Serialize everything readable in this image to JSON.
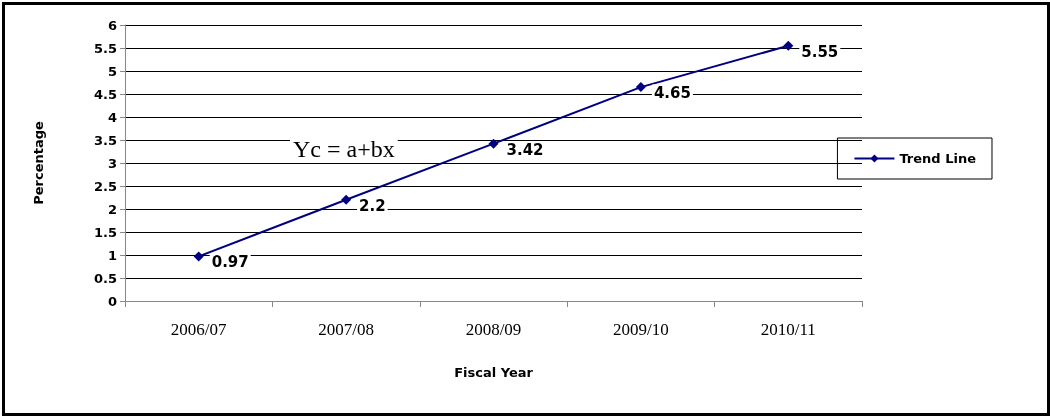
{
  "chart_data": {
    "type": "line",
    "xlabel": "Fiscal Year",
    "ylabel": "Percentage",
    "categories": [
      "2006/07",
      "2007/08",
      "2008/09",
      "2009/10",
      "2010/11"
    ],
    "series": [
      {
        "name": "Trend Line",
        "color": "#000080",
        "values": [
          0.97,
          2.2,
          3.42,
          4.65,
          5.55
        ]
      }
    ],
    "ylim": [
      0,
      6
    ],
    "yticks": [
      0,
      0.5,
      1,
      1.5,
      2,
      2.5,
      3,
      3.5,
      4,
      4.5,
      5,
      5.5,
      6
    ],
    "grid": "y",
    "legend": "right",
    "marker": "diamond",
    "line_style": "solid",
    "data_labels": true,
    "annotations": [
      "Yc = a+bx"
    ]
  }
}
